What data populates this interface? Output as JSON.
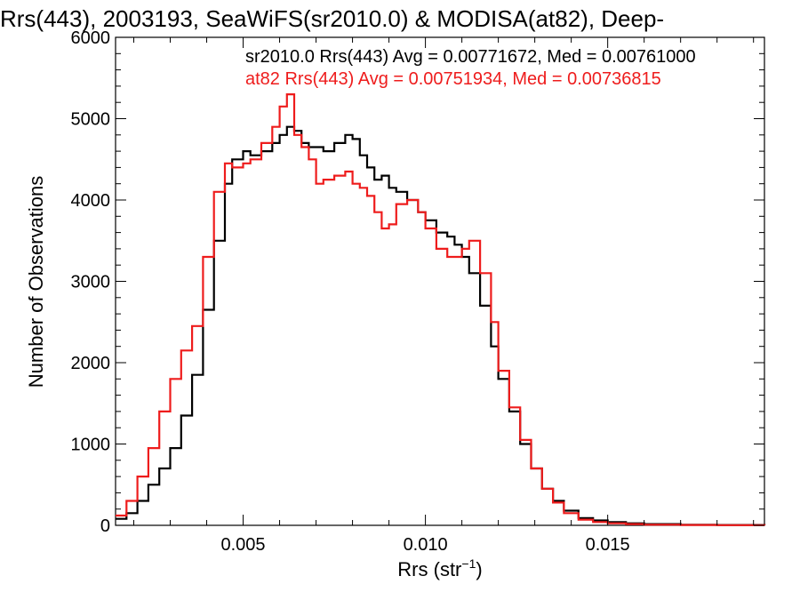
{
  "chart_data": {
    "type": "line",
    "title": "Rrs(443), 2003193, SeaWiFS(sr2010.0) & MODISA(at82), Deep-",
    "xlabel_main": "Rrs (str",
    "xlabel_sup": "−1",
    "xlabel_end": ")",
    "ylabel": "Number of Observations",
    "xlim": [
      0.0015,
      0.0193
    ],
    "ylim": [
      0,
      6000
    ],
    "x_ticks": [
      0.005,
      0.01,
      0.015
    ],
    "x_tick_labels": [
      "0.005",
      "0.010",
      "0.015"
    ],
    "y_ticks": [
      0,
      1000,
      2000,
      3000,
      4000,
      5000,
      6000
    ],
    "y_tick_labels": [
      "0",
      "1000",
      "2000",
      "3000",
      "4000",
      "5000",
      "6000"
    ],
    "grid": false,
    "legend_position": "top-right",
    "series": [
      {
        "name": "sr2010.0",
        "label": "sr2010.0 Rrs(443) Avg = 0.00771672, Med = 0.00761000",
        "color": "#000000",
        "x": [
          0.0015,
          0.0018,
          0.0021,
          0.0024,
          0.0027,
          0.003,
          0.0033,
          0.0036,
          0.0039,
          0.0042,
          0.0045,
          0.0047,
          0.005,
          0.0052,
          0.0055,
          0.0058,
          0.006,
          0.0062,
          0.0064,
          0.0066,
          0.0068,
          0.007,
          0.0072,
          0.0075,
          0.0078,
          0.008,
          0.0082,
          0.0084,
          0.0086,
          0.0088,
          0.009,
          0.0092,
          0.0095,
          0.0098,
          0.01,
          0.0103,
          0.0106,
          0.0108,
          0.011,
          0.0112,
          0.0115,
          0.0118,
          0.012,
          0.0123,
          0.0126,
          0.0129,
          0.0132,
          0.0135,
          0.0138,
          0.0142,
          0.0146,
          0.015,
          0.0155,
          0.016,
          0.017,
          0.018,
          0.0193
        ],
        "values": [
          80,
          150,
          300,
          500,
          700,
          950,
          1350,
          1850,
          2650,
          3500,
          4200,
          4500,
          4600,
          4550,
          4600,
          4700,
          4800,
          4900,
          4850,
          4700,
          4650,
          4650,
          4600,
          4700,
          4800,
          4750,
          4550,
          4400,
          4250,
          4300,
          4150,
          4100,
          4000,
          3850,
          3750,
          3600,
          3550,
          3450,
          3300,
          3100,
          2700,
          2200,
          1800,
          1400,
          1000,
          700,
          450,
          300,
          180,
          90,
          60,
          40,
          25,
          15,
          8,
          4,
          0
        ]
      },
      {
        "name": "at82",
        "label": "at82 Rrs(443) Avg = 0.00751934, Med = 0.00736815",
        "color": "#ee1c1c",
        "x": [
          0.0015,
          0.0018,
          0.0021,
          0.0024,
          0.0027,
          0.003,
          0.0033,
          0.0036,
          0.0039,
          0.0042,
          0.0045,
          0.0047,
          0.005,
          0.0052,
          0.0055,
          0.0058,
          0.006,
          0.0062,
          0.0064,
          0.0066,
          0.0068,
          0.007,
          0.0072,
          0.0075,
          0.0078,
          0.008,
          0.0082,
          0.0084,
          0.0086,
          0.0088,
          0.009,
          0.0092,
          0.0095,
          0.0098,
          0.01,
          0.0103,
          0.0106,
          0.0108,
          0.011,
          0.0112,
          0.0115,
          0.0118,
          0.012,
          0.0123,
          0.0126,
          0.0129,
          0.0132,
          0.0135,
          0.0138,
          0.0142,
          0.0146,
          0.015,
          0.0155,
          0.016,
          0.017,
          0.018,
          0.0193
        ],
        "values": [
          120,
          300,
          600,
          950,
          1400,
          1800,
          2150,
          2450,
          3300,
          4100,
          4450,
          4400,
          4450,
          4500,
          4700,
          4900,
          5150,
          5300,
          4800,
          4650,
          4500,
          4200,
          4250,
          4300,
          4350,
          4200,
          4150,
          4050,
          3850,
          3650,
          3700,
          3950,
          4000,
          3850,
          3650,
          3400,
          3300,
          3300,
          3400,
          3500,
          3100,
          2500,
          1900,
          1450,
          1050,
          700,
          450,
          280,
          150,
          70,
          40,
          25,
          15,
          8,
          4,
          2,
          0
        ]
      }
    ]
  }
}
